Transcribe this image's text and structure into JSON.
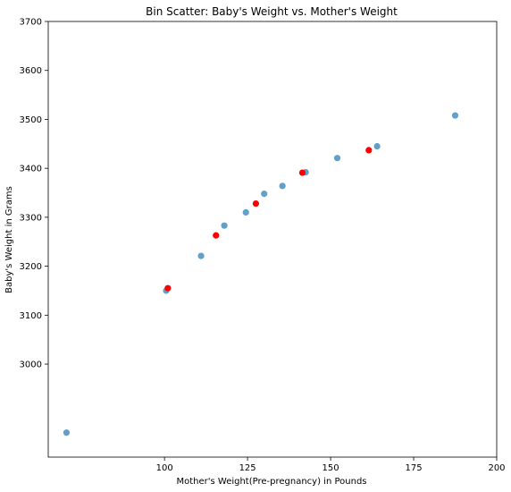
{
  "chart_data": {
    "type": "scatter",
    "title": "Bin Scatter: Baby's Weight vs. Mother's Weight",
    "xlabel": "Mother's Weight(Pre-pregnancy) in Pounds",
    "ylabel": "Baby's Weight in Grams",
    "xlim": [
      65,
      200
    ],
    "ylim": [
      2810,
      3700
    ],
    "xticks": [
      100,
      125,
      150,
      175,
      200
    ],
    "yticks": [
      3000,
      3100,
      3200,
      3300,
      3400,
      3500,
      3600,
      3700
    ],
    "grid": false,
    "series": [
      {
        "color": "#1f77b4",
        "opacity": 0.7,
        "points": [
          {
            "x": 70.5,
            "y": 2860
          },
          {
            "x": 100.5,
            "y": 3150
          },
          {
            "x": 111,
            "y": 3221
          },
          {
            "x": 118,
            "y": 3283
          },
          {
            "x": 124.5,
            "y": 3310
          },
          {
            "x": 130,
            "y": 3348
          },
          {
            "x": 135.5,
            "y": 3364
          },
          {
            "x": 142.5,
            "y": 3392
          },
          {
            "x": 152,
            "y": 3421
          },
          {
            "x": 164,
            "y": 3445
          },
          {
            "x": 187.5,
            "y": 3508
          }
        ]
      },
      {
        "color": "#ff0000",
        "opacity": 1,
        "points": [
          {
            "x": 101,
            "y": 3155
          },
          {
            "x": 115.5,
            "y": 3263
          },
          {
            "x": 127.5,
            "y": 3328
          },
          {
            "x": 141.5,
            "y": 3391
          },
          {
            "x": 161.5,
            "y": 3437
          }
        ]
      }
    ]
  }
}
